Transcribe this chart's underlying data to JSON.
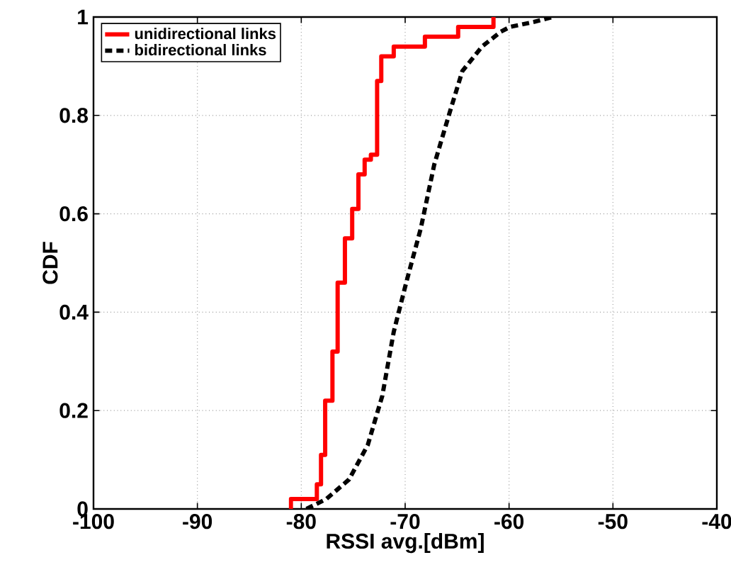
{
  "chart_data": {
    "type": "line",
    "xlabel": "RSSI avg.[dBm]",
    "ylabel": "CDF",
    "xlim": [
      -100,
      -40
    ],
    "ylim": [
      0,
      1
    ],
    "xticks": [
      -100,
      -90,
      -80,
      -70,
      -60,
      -50,
      -40
    ],
    "yticks": [
      0,
      0.2,
      0.4,
      0.6,
      0.8,
      1
    ],
    "grid": true,
    "legend": "top left",
    "series": [
      {
        "name": "unidirectional links",
        "type": "step",
        "color": "#ff0000",
        "line_style": "solid",
        "x": [
          -81.0,
          -81.0,
          -78.5,
          -78.1,
          -77.7,
          -77.0,
          -76.5,
          -75.8,
          -75.1,
          -74.5,
          -73.9,
          -73.3,
          -72.7,
          -72.3,
          -71.1,
          -68.1,
          -64.9,
          -61.5
        ],
        "values": [
          0,
          0.02,
          0.05,
          0.11,
          0.22,
          0.32,
          0.46,
          0.55,
          0.61,
          0.68,
          0.71,
          0.72,
          0.87,
          0.92,
          0.94,
          0.96,
          0.98,
          1.0
        ]
      },
      {
        "name": "bidirectional links",
        "color": "#000000",
        "line_style": "dashed",
        "x": [
          -79.5,
          -77.6,
          -75.4,
          -73.6,
          -72.2,
          -71.1,
          -69.9,
          -68.5,
          -67.2,
          -65.8,
          -64.5,
          -62.6,
          -60.8,
          -59.9,
          -57.6,
          -55.8
        ],
        "values": [
          0,
          0.02,
          0.06,
          0.13,
          0.23,
          0.36,
          0.46,
          0.57,
          0.7,
          0.8,
          0.89,
          0.94,
          0.97,
          0.98,
          0.99,
          1.0
        ]
      }
    ]
  }
}
